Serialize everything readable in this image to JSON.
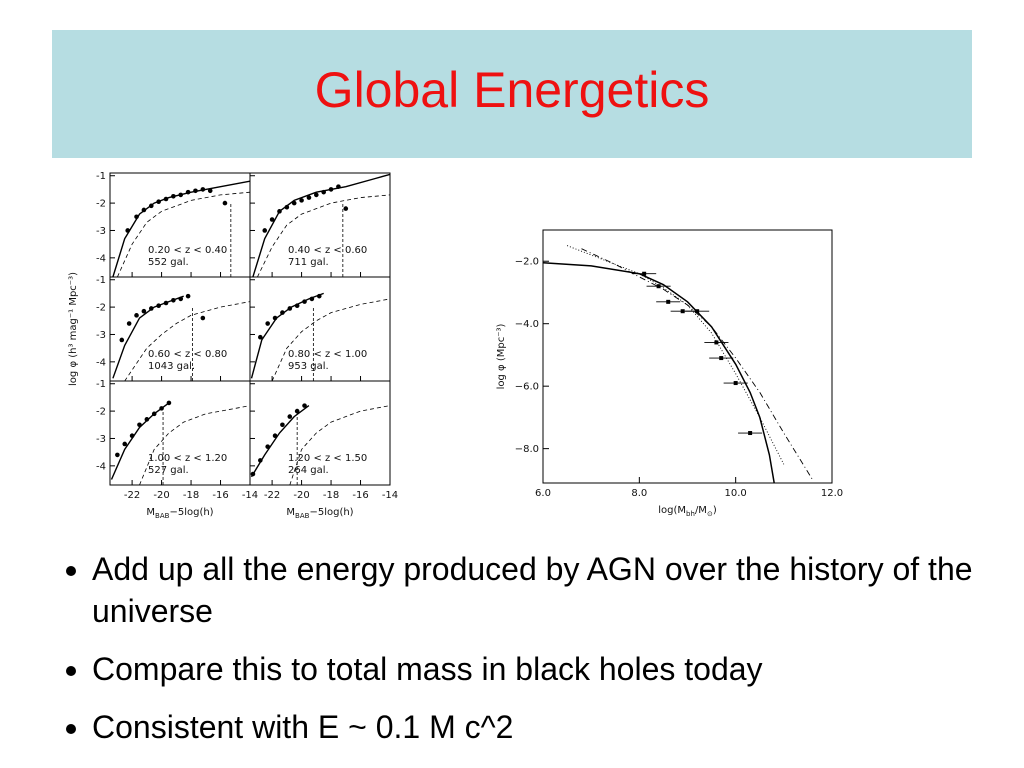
{
  "title": "Global Energetics",
  "chart_data": [
    {
      "type": "panels",
      "ylabel": "log φ (h³ mag⁻¹ Mpc⁻³)",
      "xlabel": [
        {
          "text": "M"
        },
        {
          "text": "BAB",
          "sub": true
        },
        {
          "text": "−5log(h)"
        }
      ],
      "xlim": [
        -23.5,
        -14
      ],
      "xticks": [
        -22,
        -20,
        -18,
        -16,
        -14
      ],
      "ylim": [
        -4.7,
        -0.9
      ],
      "yticks": [
        -1,
        -2,
        -3,
        -4
      ],
      "panels": [
        {
          "label": "0.20 < z < 0.40",
          "count": "552 gal.",
          "points": {
            "x": [
              -22.3,
              -21.7,
              -21.2,
              -20.7,
              -20.2,
              -19.7,
              -19.2,
              -18.7,
              -18.2,
              -17.7,
              -17.2,
              -16.7,
              -15.7
            ],
            "y": [
              -3.0,
              -2.5,
              -2.25,
              -2.1,
              -1.95,
              -1.85,
              -1.75,
              -1.7,
              -1.6,
              -1.55,
              -1.5,
              -1.55,
              -2.0
            ]
          },
          "solid": {
            "x": [
              -23.3,
              -22.5,
              -21.5,
              -20.5,
              -19.5,
              -18,
              -16,
              -14
            ],
            "y": [
              -4.7,
              -3.3,
              -2.4,
              -2.0,
              -1.8,
              -1.6,
              -1.4,
              -1.2
            ]
          },
          "dashed": {
            "x": [
              -23,
              -22,
              -21,
              -20,
              -18,
              -16,
              -14
            ],
            "y": [
              -4.7,
              -3.5,
              -2.7,
              -2.3,
              -1.9,
              -1.7,
              -1.6
            ]
          },
          "limit": -15.3
        },
        {
          "label": "0.40 < z < 0.60",
          "count": "711 gal.",
          "points": {
            "x": [
              -22.5,
              -22,
              -21.5,
              -21,
              -20.5,
              -20,
              -19.5,
              -19,
              -18.5,
              -18,
              -17.5,
              -17
            ],
            "y": [
              -3.0,
              -2.6,
              -2.3,
              -2.15,
              -2.0,
              -1.9,
              -1.8,
              -1.7,
              -1.6,
              -1.5,
              -1.4,
              -2.2
            ]
          },
          "solid": {
            "x": [
              -23.3,
              -22.5,
              -21.5,
              -20.5,
              -19,
              -17,
              -15,
              -14
            ],
            "y": [
              -4.7,
              -3.3,
              -2.3,
              -1.9,
              -1.6,
              -1.4,
              -1.1,
              -0.95
            ]
          },
          "dashed": {
            "x": [
              -23,
              -22,
              -21,
              -20,
              -18,
              -16,
              -14
            ],
            "y": [
              -4.7,
              -3.6,
              -2.8,
              -2.4,
              -2.0,
              -1.8,
              -1.7
            ]
          },
          "limit": -17.2
        },
        {
          "label": "0.60 < z < 0.80",
          "count": "1043 gal.",
          "points": {
            "x": [
              -22.7,
              -22.2,
              -21.7,
              -21.2,
              -20.7,
              -20.2,
              -19.7,
              -19.2,
              -18.7,
              -18.2,
              -17.2
            ],
            "y": [
              -3.2,
              -2.6,
              -2.3,
              -2.15,
              -2.05,
              -1.95,
              -1.85,
              -1.75,
              -1.7,
              -1.6,
              -2.4
            ]
          },
          "solid": {
            "x": [
              -23.3,
              -22.5,
              -21.5,
              -20.5,
              -19.5,
              -18.5
            ],
            "y": [
              -4.6,
              -3.4,
              -2.4,
              -2.0,
              -1.8,
              -1.6
            ]
          },
          "dashed": {
            "x": [
              -22.5,
              -21,
              -20,
              -19,
              -18,
              -16,
              -14
            ],
            "y": [
              -4.7,
              -3.5,
              -3.0,
              -2.6,
              -2.3,
              -2.0,
              -1.8
            ]
          },
          "limit": -17.9
        },
        {
          "label": "0.80 < z < 1.00",
          "count": "953 gal.",
          "points": {
            "x": [
              -22.8,
              -22.3,
              -21.8,
              -21.3,
              -20.8,
              -20.3,
              -19.8,
              -19.3,
              -18.8
            ],
            "y": [
              -3.1,
              -2.6,
              -2.4,
              -2.2,
              -2.05,
              -1.95,
              -1.8,
              -1.7,
              -1.6
            ]
          },
          "solid": {
            "x": [
              -23.4,
              -22.7,
              -21.7,
              -20.7,
              -19.5,
              -18.5
            ],
            "y": [
              -4.6,
              -3.2,
              -2.4,
              -2.0,
              -1.7,
              -1.5
            ]
          },
          "dashed": {
            "x": [
              -22,
              -21,
              -20,
              -19,
              -18,
              -16,
              -14
            ],
            "y": [
              -4.7,
              -3.5,
              -2.9,
              -2.5,
              -2.2,
              -1.9,
              -1.7
            ]
          },
          "limit": -19.2
        },
        {
          "label": "1.00 < z < 1.20",
          "count": "527 gal.",
          "points": {
            "x": [
              -23,
              -22.5,
              -22,
              -21.5,
              -21,
              -20.5,
              -20,
              -19.5
            ],
            "y": [
              -3.6,
              -3.2,
              -2.9,
              -2.5,
              -2.3,
              -2.1,
              -1.9,
              -1.7
            ]
          },
          "solid": {
            "x": [
              -23.4,
              -22.5,
              -21.5,
              -20.5,
              -19.5
            ],
            "y": [
              -4.5,
              -3.4,
              -2.6,
              -2.1,
              -1.7
            ]
          },
          "dashed": {
            "x": [
              -21.5,
              -20.5,
              -19.5,
              -18.5,
              -17,
              -15,
              -14
            ],
            "y": [
              -4.7,
              -3.4,
              -2.8,
              -2.4,
              -2.1,
              -1.9,
              -1.8
            ]
          },
          "limit": -19.9
        },
        {
          "label": "1.20 < z < 1.50",
          "count": "264 gal.",
          "points": {
            "x": [
              -23.3,
              -22.8,
              -22.3,
              -21.8,
              -21.3,
              -20.8,
              -20.3,
              -19.8
            ],
            "y": [
              -4.3,
              -3.8,
              -3.3,
              -2.9,
              -2.5,
              -2.2,
              -2.0,
              -1.8
            ]
          },
          "solid": {
            "x": [
              -23.4,
              -22.5,
              -21.5,
              -20.5,
              -19.5
            ],
            "y": [
              -4.4,
              -3.6,
              -2.8,
              -2.2,
              -1.8
            ]
          },
          "dashed": {
            "x": [
              -20.8,
              -20,
              -19,
              -18,
              -16,
              -14
            ],
            "y": [
              -4.7,
              -3.4,
              -2.8,
              -2.4,
              -2.0,
              -1.8
            ]
          },
          "limit": -20.3
        }
      ]
    },
    {
      "type": "scatter",
      "ylabel": "log φ (Mpc⁻³)",
      "xlabel": [
        {
          "text": "log(M"
        },
        {
          "text": "bh",
          "sub": true
        },
        {
          "text": "/M"
        },
        {
          "text": "⊙",
          "sub": true
        },
        {
          "text": ")"
        }
      ],
      "xlim": [
        6.0,
        12.0
      ],
      "xticks": [
        {
          "value": 6,
          "label": "6.0"
        },
        {
          "value": 8,
          "label": "8.0"
        },
        {
          "value": 10,
          "label": "10.0"
        },
        {
          "value": 12,
          "label": "12.0"
        }
      ],
      "ylim": [
        -9.1,
        -1.0
      ],
      "yticks": [
        {
          "value": -2,
          "label": "−2.0"
        },
        {
          "value": -4,
          "label": "−4.0"
        },
        {
          "value": -6,
          "label": "−6.0"
        },
        {
          "value": -8,
          "label": "−8.0"
        }
      ],
      "points": {
        "x": [
          8.1,
          8.4,
          8.6,
          8.9,
          9.2,
          9.6,
          9.7,
          10.0,
          10.3
        ],
        "y": [
          -2.4,
          -2.8,
          -3.3,
          -3.6,
          -3.6,
          -4.6,
          -5.1,
          -5.9,
          -7.5
        ],
        "xerr": [
          0.25,
          0.25,
          0.25,
          0.25,
          0.25,
          0.25,
          0.25,
          0.25,
          0.25
        ]
      },
      "lines": [
        {
          "style": "solid",
          "x": [
            6.0,
            7.0,
            8.0,
            8.5,
            9.0,
            9.5,
            10.0,
            10.3,
            10.5,
            10.7,
            10.8
          ],
          "y": [
            -2.05,
            -2.15,
            -2.4,
            -2.75,
            -3.3,
            -4.1,
            -5.3,
            -6.2,
            -7.0,
            -8.2,
            -9.1
          ]
        },
        {
          "style": "dotted",
          "x": [
            6.5,
            7.0,
            7.5,
            8.0,
            8.5,
            9.0,
            9.5,
            10.0,
            10.5,
            11.0
          ],
          "y": [
            -1.5,
            -1.8,
            -2.1,
            -2.4,
            -2.85,
            -3.4,
            -4.3,
            -5.6,
            -7.0,
            -8.5
          ]
        },
        {
          "style": "dashdot",
          "x": [
            6.8,
            7.5,
            8.0,
            8.5,
            9.0,
            9.5,
            10.0,
            10.5,
            11.0,
            11.6
          ],
          "y": [
            -1.6,
            -2.1,
            -2.5,
            -2.9,
            -3.4,
            -4.1,
            -5.1,
            -6.2,
            -7.5,
            -9.0
          ]
        }
      ]
    }
  ],
  "bullets": [
    "Add up all the energy produced by AGN over the history of the universe",
    "Compare this to total mass in black holes today",
    "Consistent with E ~ 0.1 M c^2"
  ]
}
